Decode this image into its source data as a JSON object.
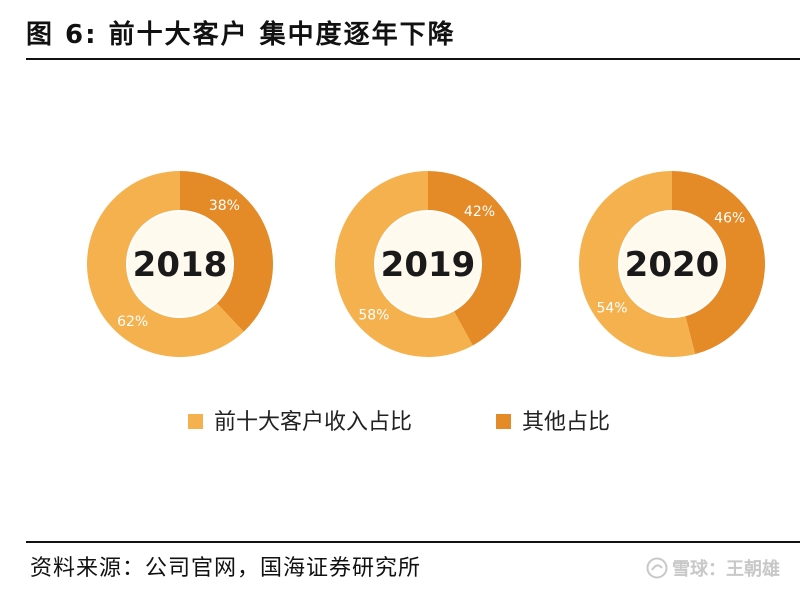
{
  "figure": {
    "title": "图 6:  前十大客户 集中度逐年下降",
    "source": "资料来源：公司官网，国海证券研究所",
    "watermark": "雪球：王朝雄"
  },
  "chart_data": {
    "type": "pie",
    "variant": "donut",
    "charts": [
      {
        "year": "2018",
        "slices": [
          {
            "series": "前十大客户收入占比",
            "value": 62,
            "label": "62%"
          },
          {
            "series": "其他占比",
            "value": 38,
            "label": "38%"
          }
        ]
      },
      {
        "year": "2019",
        "slices": [
          {
            "series": "前十大客户收入占比",
            "value": 58,
            "label": "58%"
          },
          {
            "series": "其他占比",
            "value": 42,
            "label": "42%"
          }
        ]
      },
      {
        "year": "2020",
        "slices": [
          {
            "series": "前十大客户收入占比",
            "value": 54,
            "label": "54%"
          },
          {
            "series": "其他占比",
            "value": 46,
            "label": "46%"
          }
        ]
      }
    ],
    "legend": {
      "placement": "bottom",
      "items": [
        {
          "name": "前十大客户收入占比",
          "color": "#F5B14D"
        },
        {
          "name": "其他占比",
          "color": "#E48A26"
        }
      ]
    },
    "colors": {
      "top10": "#F5B14D",
      "other": "#E48A26",
      "center": "#FFF9EE"
    }
  }
}
